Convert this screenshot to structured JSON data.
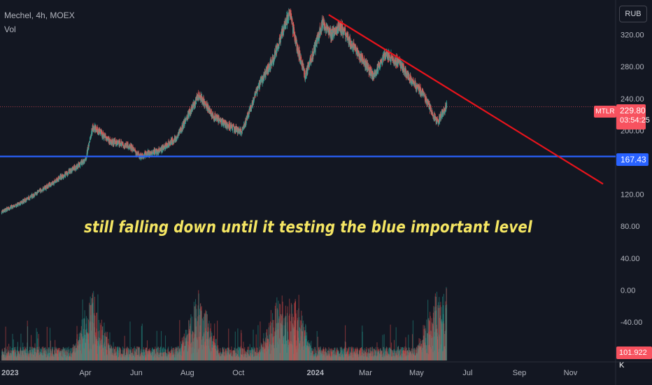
{
  "legend": {
    "symbol_line": "Mechel, 4h, MOEX",
    "indicator": "Vol"
  },
  "currency": "RUB",
  "annotation": "still falling down until it testing the blue important level",
  "price_tag": {
    "ticker": "MTLR",
    "price": "229.80",
    "countdown": "03:54:25",
    "color": "#f7525f"
  },
  "blue_level": {
    "value": 167.43,
    "label": "167.43",
    "color": "#2962ff"
  },
  "volume_tag": {
    "label": "101.922 K",
    "color": "#f7525f"
  },
  "colors": {
    "up": "#26a69a",
    "down": "#ef5350",
    "trendline": "#e8141c",
    "background": "#131722"
  },
  "chart_data": {
    "type": "line",
    "title": "Mechel, 4h, MOEX",
    "currency": "RUB",
    "y_axis": {
      "ticks": [
        320,
        280,
        240,
        200,
        120,
        80,
        40,
        0,
        -40
      ],
      "tick_labels": [
        "320.00",
        "280.00",
        "240.00",
        "200.00",
        "120.00",
        "80.00",
        "40.00",
        "0.00",
        "-40.00"
      ],
      "range": [
        -90,
        360
      ]
    },
    "x_axis": {
      "tick_labels": [
        "2023",
        "Apr",
        "Jun",
        "Aug",
        "Oct",
        "2024",
        "Mar",
        "May",
        "Jul",
        "Sep",
        "Nov"
      ],
      "tick_dates": [
        "2023-01-01",
        "2023-04-01",
        "2023-06-01",
        "2023-08-01",
        "2023-10-01",
        "2024-01-01",
        "2024-03-01",
        "2024-05-01",
        "2024-07-01",
        "2024-09-01",
        "2024-11-01"
      ],
      "range": [
        "2022-12-20",
        "2024-12-25"
      ]
    },
    "price_series": {
      "name": "MTLR",
      "x": [
        "2022-12-22",
        "2023-01-15",
        "2023-02-15",
        "2023-03-15",
        "2023-04-01",
        "2023-04-10",
        "2023-05-01",
        "2023-05-25",
        "2023-06-05",
        "2023-07-01",
        "2023-07-20",
        "2023-08-05",
        "2023-08-15",
        "2023-09-01",
        "2023-09-20",
        "2023-10-05",
        "2023-10-25",
        "2023-11-10",
        "2023-11-25",
        "2023-12-01",
        "2023-12-10",
        "2023-12-20",
        "2024-01-01",
        "2024-01-10",
        "2024-01-20",
        "2024-02-01",
        "2024-02-15",
        "2024-02-25",
        "2024-03-10",
        "2024-03-25",
        "2024-04-10",
        "2024-04-25",
        "2024-05-10",
        "2024-05-20",
        "2024-05-26",
        "2024-06-01",
        "2024-06-06"
      ],
      "y": [
        98,
        110,
        130,
        150,
        162,
        205,
        186,
        180,
        168,
        176,
        192,
        225,
        245,
        218,
        205,
        198,
        255,
        285,
        330,
        348,
        305,
        268,
        305,
        335,
        320,
        330,
        305,
        290,
        268,
        296,
        285,
        262,
        245,
        222,
        210,
        222,
        230
      ]
    },
    "blue_level": 167.43,
    "trendline": {
      "x": [
        "2024-01-17",
        "2024-12-10"
      ],
      "y": [
        345,
        133
      ]
    },
    "volume": {
      "last": "101.922 K"
    }
  }
}
